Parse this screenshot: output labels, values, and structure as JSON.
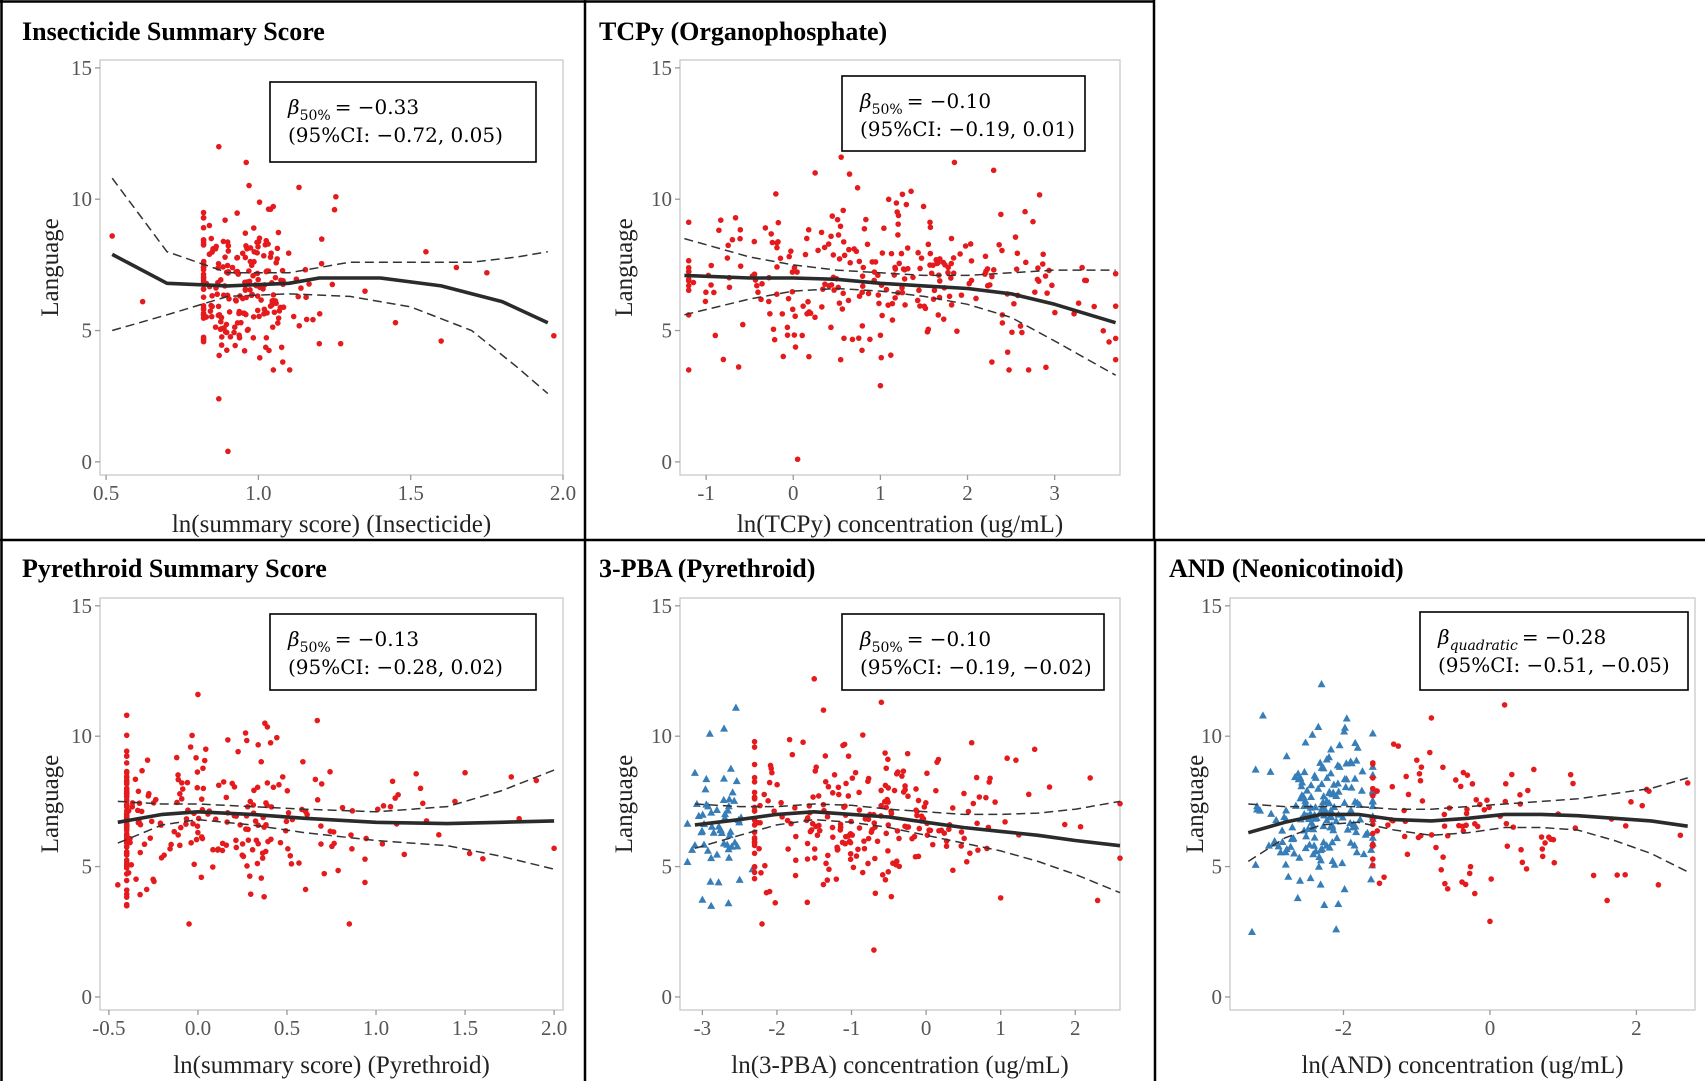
{
  "chart_data": [
    {
      "type": "scatter",
      "title": "Insecticide Summary Score",
      "xlabel": "ln(summary score) (Insecticide)",
      "ylabel": "Language",
      "xlim": [
        0.48,
        2.0
      ],
      "ylim": [
        -0.5,
        15.3
      ],
      "xticks": [
        0.5,
        1.0,
        1.5,
        2.0
      ],
      "xticklabels": [
        "0.5",
        "1.0",
        "1.5",
        "2.0"
      ],
      "yticks": [
        0,
        5,
        10,
        15
      ],
      "yticklabels": [
        "0",
        "5",
        "10",
        "15"
      ],
      "annotation": {
        "beta_symbol": "β",
        "beta_sub": "50%",
        "beta_value": "= −0.33",
        "ci": "(95%CI: −0.72, 0.05)"
      },
      "fit": {
        "x": [
          0.52,
          0.7,
          0.9,
          1.1,
          1.2,
          1.4,
          1.6,
          1.8,
          1.95
        ],
        "y": [
          7.9,
          6.8,
          6.7,
          6.8,
          7.0,
          7.0,
          6.7,
          6.1,
          5.3
        ]
      },
      "ci_lower": {
        "x": [
          0.52,
          0.7,
          0.9,
          1.1,
          1.3,
          1.5,
          1.7,
          1.85,
          1.95
        ],
        "y": [
          5.0,
          5.6,
          6.3,
          6.4,
          6.3,
          5.9,
          5.0,
          3.6,
          2.6
        ]
      },
      "ci_upper": {
        "x": [
          0.52,
          0.7,
          0.9,
          1.1,
          1.3,
          1.5,
          1.7,
          1.85,
          1.95
        ],
        "y": [
          10.8,
          8.0,
          7.2,
          7.2,
          7.6,
          7.6,
          7.6,
          7.8,
          8.0
        ]
      },
      "groups": [
        {
          "marker": "dot",
          "color": "#e41a1c",
          "n": 220,
          "x_range": [
            0.82,
            1.3
          ],
          "center": 0.93,
          "y_mean": 6.7,
          "y_sd": 1.4,
          "extra": [
            [
              0.52,
              8.6
            ],
            [
              0.62,
              6.1
            ],
            [
              0.87,
              12.0
            ],
            [
              0.87,
              2.4
            ],
            [
              0.9,
              0.4
            ],
            [
              0.96,
              11.4
            ],
            [
              1.2,
              4.5
            ],
            [
              1.27,
              4.5
            ],
            [
              1.35,
              6.5
            ],
            [
              1.45,
              5.3
            ],
            [
              1.55,
              8.0
            ],
            [
              1.6,
              4.6
            ],
            [
              1.65,
              7.4
            ],
            [
              1.75,
              7.2
            ],
            [
              1.97,
              4.8
            ],
            [
              1.08,
              3.8
            ],
            [
              1.25,
              9.6
            ]
          ]
        }
      ]
    },
    {
      "type": "scatter",
      "title": "TCPy (Organophosphate)",
      "xlabel": "ln(TCPy) concentration (ug/mL)",
      "ylabel": "Language",
      "xlim": [
        -1.3,
        3.75
      ],
      "ylim": [
        -0.5,
        15.3
      ],
      "xticks": [
        -1,
        0,
        1,
        2,
        3
      ],
      "xticklabels": [
        "-1",
        "0",
        "1",
        "2",
        "3"
      ],
      "yticks": [
        0,
        5,
        10,
        15
      ],
      "yticklabels": [
        "0",
        "5",
        "10",
        "15"
      ],
      "annotation": {
        "beta_symbol": "β",
        "beta_sub": "50%",
        "beta_value": "= −0.10",
        "ci": "(95%CI: −0.19, 0.01)"
      },
      "fit": {
        "x": [
          -1.25,
          -0.5,
          0.0,
          0.5,
          1.0,
          1.5,
          2.0,
          2.5,
          3.0,
          3.7
        ],
        "y": [
          7.1,
          7.0,
          7.0,
          6.95,
          6.8,
          6.7,
          6.6,
          6.4,
          6.0,
          5.3
        ]
      },
      "ci_lower": {
        "x": [
          -1.25,
          -0.5,
          0.0,
          0.5,
          1.0,
          1.5,
          2.0,
          2.5,
          3.0,
          3.7
        ],
        "y": [
          5.6,
          6.2,
          6.5,
          6.6,
          6.5,
          6.3,
          6.0,
          5.5,
          4.6,
          3.3
        ]
      },
      "ci_upper": {
        "x": [
          -1.25,
          -0.5,
          0.0,
          0.5,
          1.0,
          1.5,
          2.0,
          2.5,
          3.0,
          3.7
        ],
        "y": [
          8.5,
          7.8,
          7.5,
          7.3,
          7.2,
          7.1,
          7.1,
          7.2,
          7.3,
          7.3
        ]
      },
      "groups": [
        {
          "marker": "dot",
          "color": "#e41a1c",
          "n": 280,
          "x_range": [
            -1.2,
            3.7
          ],
          "center": 0.8,
          "y_mean": 6.8,
          "y_sd": 1.4,
          "extra": [
            [
              0.05,
              0.1
            ],
            [
              0.55,
              11.6
            ],
            [
              1.85,
              11.4
            ],
            [
              2.3,
              11.1
            ],
            [
              1.0,
              2.9
            ],
            [
              -0.2,
              10.2
            ],
            [
              3.7,
              4.7
            ],
            [
              2.9,
              3.6
            ]
          ]
        }
      ]
    },
    {
      "type": "scatter",
      "title": "Pyrethroid Summary Score",
      "xlabel": "ln(summary score) (Pyrethroid)",
      "ylabel": "Language",
      "xlim": [
        -0.55,
        2.05
      ],
      "ylim": [
        -0.5,
        15.3
      ],
      "xticks": [
        -0.5,
        0.0,
        0.5,
        1.0,
        1.5,
        2.0
      ],
      "xticklabels": [
        "-0.5",
        "0.0",
        "0.5",
        "1.0",
        "1.5",
        "2.0"
      ],
      "yticks": [
        0,
        5,
        10,
        15
      ],
      "yticklabels": [
        "0",
        "5",
        "10",
        "15"
      ],
      "annotation": {
        "beta_symbol": "β",
        "beta_sub": "50%",
        "beta_value": "= −0.13",
        "ci": "(95%CI: −0.28, 0.02)"
      },
      "fit": {
        "x": [
          -0.45,
          -0.2,
          0.0,
          0.3,
          0.6,
          1.0,
          1.4,
          1.7,
          2.0
        ],
        "y": [
          6.7,
          7.0,
          7.1,
          7.0,
          6.85,
          6.7,
          6.65,
          6.7,
          6.75
        ]
      },
      "ci_lower": {
        "x": [
          -0.45,
          -0.2,
          0.0,
          0.3,
          0.6,
          1.0,
          1.4,
          1.7,
          2.0
        ],
        "y": [
          5.9,
          6.6,
          6.8,
          6.6,
          6.3,
          6.0,
          5.8,
          5.4,
          4.9
        ]
      },
      "ci_upper": {
        "x": [
          -0.45,
          -0.2,
          0.0,
          0.3,
          0.6,
          1.0,
          1.4,
          1.7,
          2.0
        ],
        "y": [
          7.5,
          7.4,
          7.4,
          7.3,
          7.2,
          7.1,
          7.3,
          7.9,
          8.7
        ]
      },
      "groups": [
        {
          "marker": "dot",
          "color": "#e41a1c",
          "n": 270,
          "x_range": [
            -0.4,
            1.9
          ],
          "center": 0.0,
          "y_mean": 6.9,
          "y_sd": 1.4,
          "extra": [
            [
              0.0,
              11.6
            ],
            [
              -0.05,
              2.8
            ],
            [
              0.85,
              2.8
            ],
            [
              0.67,
              10.6
            ],
            [
              1.5,
              8.6
            ],
            [
              1.9,
              8.3
            ],
            [
              2.0,
              5.7
            ],
            [
              1.6,
              5.3
            ],
            [
              1.25,
              8.0
            ],
            [
              -0.45,
              4.3
            ]
          ]
        }
      ]
    },
    {
      "type": "scatter",
      "title": "3-PBA (Pyrethroid)",
      "xlabel": "ln(3-PBA) concentration (ug/mL)",
      "ylabel": "Language",
      "xlim": [
        -3.3,
        2.6
      ],
      "ylim": [
        -0.5,
        15.3
      ],
      "xticks": [
        -3,
        -2,
        -1,
        0,
        1,
        2
      ],
      "xticklabels": [
        "-3",
        "-2",
        "-1",
        "0",
        "1",
        "2"
      ],
      "yticks": [
        0,
        5,
        10,
        15
      ],
      "yticklabels": [
        "0",
        "5",
        "10",
        "15"
      ],
      "annotation": {
        "beta_symbol": "β",
        "beta_sub": "50%",
        "beta_value": "= −0.10",
        "ci": "(95%CI: −0.19, −0.02)"
      },
      "fit": {
        "x": [
          -3.1,
          -2.5,
          -2.0,
          -1.5,
          -1.0,
          -0.5,
          0.0,
          0.5,
          1.0,
          1.5,
          2.0,
          2.6
        ],
        "y": [
          6.6,
          6.8,
          7.0,
          7.1,
          7.0,
          6.9,
          6.7,
          6.5,
          6.35,
          6.2,
          6.0,
          5.8
        ]
      },
      "ci_lower": {
        "x": [
          -3.1,
          -2.5,
          -2.0,
          -1.5,
          -1.0,
          -0.5,
          0.0,
          0.5,
          1.0,
          1.5,
          2.0,
          2.6
        ],
        "y": [
          5.7,
          6.2,
          6.6,
          6.8,
          6.7,
          6.5,
          6.2,
          5.9,
          5.6,
          5.2,
          4.7,
          4.0
        ]
      },
      "ci_upper": {
        "x": [
          -3.1,
          -2.5,
          -2.0,
          -1.5,
          -1.0,
          -0.5,
          0.0,
          0.5,
          1.0,
          1.5,
          2.0,
          2.6
        ],
        "y": [
          7.4,
          7.3,
          7.3,
          7.4,
          7.35,
          7.2,
          7.1,
          7.0,
          7.0,
          7.05,
          7.2,
          7.5
        ]
      },
      "groups": [
        {
          "marker": "triangle",
          "color": "#377eb8",
          "n": 55,
          "x_range": [
            -3.2,
            -2.3
          ],
          "center": -2.8,
          "y_mean": 6.5,
          "y_sd": 1.3,
          "extra": [
            [
              -2.55,
              11.1
            ],
            [
              -2.9,
              10.1
            ],
            [
              -3.1,
              8.6
            ],
            [
              -2.65,
              3.6
            ],
            [
              -2.5,
              4.5
            ]
          ]
        },
        {
          "marker": "dot",
          "color": "#e41a1c",
          "n": 250,
          "x_range": [
            -2.3,
            2.6
          ],
          "center": -0.9,
          "y_mean": 6.9,
          "y_sd": 1.4,
          "extra": [
            [
              -1.5,
              12.2
            ],
            [
              -0.7,
              1.8
            ],
            [
              -2.2,
              2.8
            ],
            [
              2.3,
              3.7
            ],
            [
              2.2,
              8.4
            ],
            [
              1.0,
              3.8
            ],
            [
              -0.6,
              11.3
            ]
          ]
        }
      ]
    },
    {
      "type": "scatter",
      "title": "AND (Neonicotinoid)",
      "xlabel": "ln(AND) concentration (ug/mL)",
      "ylabel": "Language",
      "xlim": [
        -3.55,
        2.8
      ],
      "ylim": [
        -0.5,
        15.3
      ],
      "xticks": [
        -2,
        0,
        2
      ],
      "xticklabels": [
        "-2",
        "0",
        "2"
      ],
      "yticks": [
        0,
        5,
        10,
        15
      ],
      "yticklabels": [
        "0",
        "5",
        "10",
        "15"
      ],
      "annotation": {
        "beta_symbol": "β",
        "beta_sub": "quadratic",
        "beta_value": "= −0.28",
        "ci": "(95%CI: −0.51, −0.05)"
      },
      "fit": {
        "x": [
          -3.3,
          -2.8,
          -2.3,
          -1.8,
          -1.3,
          -0.8,
          -0.3,
          0.2,
          0.7,
          1.2,
          1.7,
          2.2,
          2.7
        ],
        "y": [
          6.3,
          6.7,
          7.0,
          7.0,
          6.8,
          6.75,
          6.85,
          7.0,
          7.0,
          6.95,
          6.85,
          6.75,
          6.55
        ]
      },
      "ci_lower": {
        "x": [
          -3.3,
          -2.8,
          -2.3,
          -1.8,
          -1.3,
          -0.8,
          -0.3,
          0.2,
          0.7,
          1.2,
          1.7,
          2.2,
          2.7
        ],
        "y": [
          5.2,
          6.1,
          6.6,
          6.7,
          6.4,
          6.2,
          6.3,
          6.5,
          6.5,
          6.4,
          6.0,
          5.5,
          4.8
        ]
      },
      "ci_upper": {
        "x": [
          -3.3,
          -2.8,
          -2.3,
          -1.8,
          -1.3,
          -0.8,
          -0.3,
          0.2,
          0.7,
          1.2,
          1.7,
          2.2,
          2.7
        ],
        "y": [
          7.4,
          7.3,
          7.3,
          7.3,
          7.2,
          7.2,
          7.3,
          7.4,
          7.5,
          7.6,
          7.8,
          8.0,
          8.4
        ]
      },
      "groups": [
        {
          "marker": "triangle",
          "color": "#377eb8",
          "n": 190,
          "x_range": [
            -3.2,
            -1.6
          ],
          "center": -2.3,
          "y_mean": 6.9,
          "y_sd": 1.5,
          "extra": [
            [
              -3.25,
              2.5
            ],
            [
              -2.3,
              12.0
            ],
            [
              -3.1,
              10.8
            ],
            [
              -2.1,
              2.6
            ]
          ]
        },
        {
          "marker": "dot",
          "color": "#e41a1c",
          "n": 110,
          "x_range": [
            -1.6,
            2.7
          ],
          "center": -0.2,
          "y_mean": 6.8,
          "y_sd": 1.4,
          "extra": [
            [
              0.0,
              2.9
            ],
            [
              0.2,
              11.2
            ],
            [
              2.3,
              4.3
            ],
            [
              2.6,
              6.2
            ],
            [
              1.6,
              3.7
            ],
            [
              -0.8,
              10.7
            ]
          ]
        }
      ]
    }
  ]
}
